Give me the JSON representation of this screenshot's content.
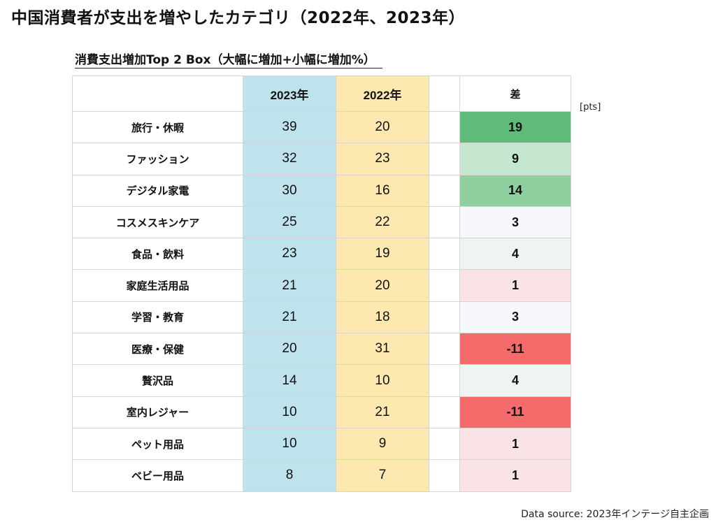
{
  "title": "中国消費者が支出を増やしたカテゴリ（2022年、2023年）",
  "subtitle": "消費支出増加Top 2 Box（大幅に増加+小幅に増加%）",
  "unit_label": "[pts]",
  "source": "Data source: 2023年インテージ自主企画",
  "colors": {
    "col_2023": "#bfe3ec",
    "col_2022": "#fde9b0",
    "diff_strong_positive": "#5fbb79",
    "diff_medium_positive": "#8fd09f",
    "diff_light_positive": "#c5e6cf",
    "diff_neutral": "#f7f8fb",
    "diff_light_neutral": "#eef4f1",
    "diff_light_negative": "#f9e3e5",
    "diff_strong_negative": "#f56b6b"
  },
  "chart_data": {
    "type": "table",
    "columns": [
      "",
      "2023年",
      "2022年",
      "",
      "差"
    ],
    "rows": [
      {
        "category": "旅行・休暇",
        "y2023": 39,
        "y2022": 20,
        "diff": "19",
        "diff_color": "#5fbb79"
      },
      {
        "category": "ファッション",
        "y2023": 32,
        "y2022": 23,
        "diff": "9",
        "diff_color": "#c5e6cf"
      },
      {
        "category": "デジタル家電",
        "y2023": 30,
        "y2022": 16,
        "diff": "14",
        "diff_color": "#8fd09f"
      },
      {
        "category": "コスメスキンケア",
        "y2023": 25,
        "y2022": 22,
        "diff": "3",
        "diff_color": "#f7f8fb"
      },
      {
        "category": "食品・飲料",
        "y2023": 23,
        "y2022": 19,
        "diff": "4",
        "diff_color": "#eef4f1"
      },
      {
        "category": "家庭生活用品",
        "y2023": 21,
        "y2022": 20,
        "diff": "1",
        "diff_color": "#f9e3e5"
      },
      {
        "category": "学習・教育",
        "y2023": 21,
        "y2022": 18,
        "diff": "3",
        "diff_color": "#f7f8fb"
      },
      {
        "category": "医療・保健",
        "y2023": 20,
        "y2022": 31,
        "diff": "-11",
        "diff_color": "#f56b6b"
      },
      {
        "category": "贅沢品",
        "y2023": 14,
        "y2022": 10,
        "diff": "4",
        "diff_color": "#eef4f1"
      },
      {
        "category": "室内レジャー",
        "y2023": 10,
        "y2022": 21,
        "diff": "-11",
        "diff_color": "#f56b6b"
      },
      {
        "category": "ペット用品",
        "y2023": 10,
        "y2022": 9,
        "diff": "1",
        "diff_color": "#f9e3e5"
      },
      {
        "category": "ベビー用品",
        "y2023": 8,
        "y2022": 7,
        "diff": "1",
        "diff_color": "#f9e3e5"
      }
    ]
  }
}
